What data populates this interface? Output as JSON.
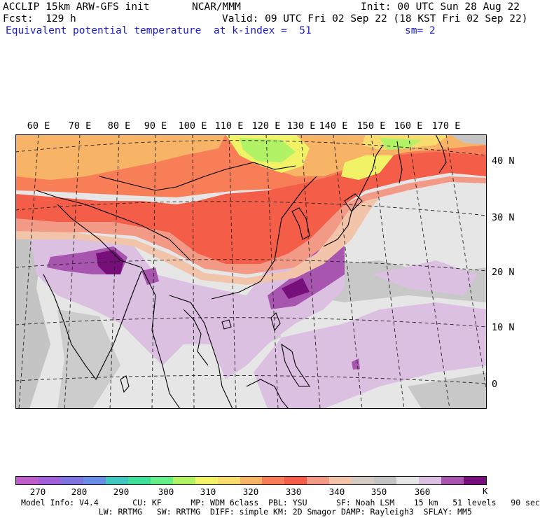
{
  "header": {
    "model_line": "ACCLIP 15km ARW-GFS init",
    "fcst_line": "Fcst:  129 h",
    "field_name": "Equivalent potential temperature",
    "center": "NCAR/MMM",
    "level_line": "at k-index =  51",
    "init_line": "Init: 00 UTC Sun 28 Aug 22",
    "valid_line": "Valid: 09 UTC Fri 02 Sep 22 (18 KST Fri 02 Sep 22)",
    "smooth_line": "sm= 2"
  },
  "map": {
    "lon_labels": [
      "60 E",
      "70 E",
      "80 E",
      "90 E",
      "100 E",
      "110 E",
      "120 E",
      "130 E",
      "140 E",
      "150 E",
      "160 E",
      "170 E"
    ],
    "lat_labels": [
      "40 N",
      "30 N",
      "20 N",
      "10 N",
      "0"
    ]
  },
  "colorbar": {
    "colors": [
      "#c05ec9",
      "#a060d8",
      "#8074e0",
      "#6a8ee6",
      "#40c8c0",
      "#3ee09a",
      "#66ee88",
      "#b2f266",
      "#f2f266",
      "#f8dc6e",
      "#f8b466",
      "#f87e58",
      "#f45d48",
      "#f29a86",
      "#f2c4aa",
      "#d4ccc4",
      "#c4c4c4",
      "#e6e6e6",
      "#dcc0e2",
      "#a855b0",
      "#760f7a"
    ],
    "labels": [
      "270",
      "280",
      "290",
      "300",
      "310",
      "320",
      "330",
      "340",
      "350",
      "360"
    ],
    "unit": "K"
  },
  "footer": {
    "line1": "Model Info: V4.4       CU: KF      MP: WDM 6class  PBL: YSU      SF: Noah LSM    15 km   51 levels   90 sec",
    "line2": "                LW: RRTMG   SW: RRTMG  DIFF: simple KM: 2D Smagor DAMP: Rayleigh3  SFLAY: MM5"
  }
}
